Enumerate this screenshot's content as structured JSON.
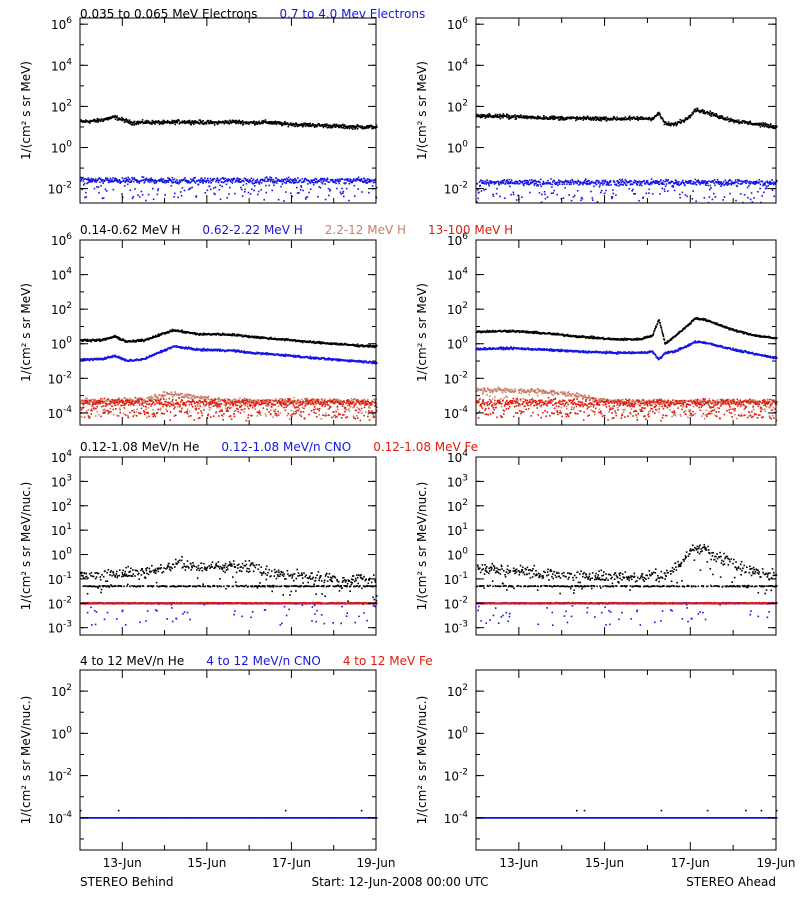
{
  "colors": {
    "black": "#000000",
    "blue": "#1515e6",
    "tan": "#c8806a",
    "red": "#e01a0c"
  },
  "footer": {
    "left": "STEREO Behind",
    "center": "Start: 12-Jun-2008 00:00 UTC",
    "right": "STEREO Ahead"
  },
  "x_ticks": [
    "13-Jun",
    "15-Jun",
    "17-Jun",
    "19-Jun"
  ],
  "rows": [
    {
      "legend": [
        {
          "text": "0.035 to 0.065 MeV Electrons",
          "color": "#000000"
        },
        {
          "text": "0.7 to 4.0 Mev Electrons",
          "color": "#1515e6"
        }
      ]
    },
    {
      "legend": [
        {
          "text": "0.14-0.62 MeV H",
          "color": "#000000"
        },
        {
          "text": "0.62-2.22 MeV H",
          "color": "#1515e6"
        },
        {
          "text": "2.2-12 MeV H",
          "color": "#c8806a"
        },
        {
          "text": "13-100 MeV H",
          "color": "#e01a0c"
        }
      ]
    },
    {
      "legend": [
        {
          "text": "0.12-1.08 MeV/n He",
          "color": "#000000"
        },
        {
          "text": "0.12-1.08 MeV/n CNO",
          "color": "#1515e6"
        },
        {
          "text": "0.12-1.08 MeV Fe",
          "color": "#e01a0c"
        }
      ]
    },
    {
      "legend": [
        {
          "text": "4 to 12 MeV/n He",
          "color": "#000000"
        },
        {
          "text": "4 to 12 MeV/n CNO",
          "color": "#1515e6"
        },
        {
          "text": "4 to 12 MeV Fe",
          "color": "#e01a0c"
        }
      ]
    }
  ],
  "chart_data": [
    {
      "type": "scatter",
      "panel": "electrons-behind",
      "row": 0,
      "col": 0,
      "ylabel": "1/(cm² s sr MeV)",
      "yscale": "log",
      "ylim": [
        0.002,
        2000000
      ],
      "y_ticks": [
        {
          "label": "10",
          "exp": "-2",
          "value": 0.01
        },
        {
          "label": "10",
          "exp": "0",
          "value": 1
        },
        {
          "label": "10",
          "exp": "2",
          "value": 100
        },
        {
          "label": "10",
          "exp": "4",
          "value": 10000
        },
        {
          "label": "10",
          "exp": "6",
          "value": 1000000
        }
      ],
      "xlim": [
        0,
        7
      ],
      "series": [
        {
          "color": "#000000",
          "x": [
            0,
            0.4,
            0.8,
            1.2,
            1.6,
            2.0,
            2.4,
            2.8,
            3.2,
            3.6,
            4.0,
            4.4,
            4.8,
            5.2,
            5.6,
            6.0,
            6.4,
            7.0
          ],
          "y": [
            18,
            20,
            30,
            16,
            17,
            16,
            18,
            17,
            16,
            18,
            16,
            17,
            14,
            13,
            12,
            11,
            10,
            10
          ],
          "noise": 0.08,
          "outliers": 0
        },
        {
          "color": "#1515e6",
          "x": [
            0,
            7
          ],
          "y": [
            0.025,
            0.025
          ],
          "noise": 0.12,
          "outliers": 0.25
        }
      ]
    },
    {
      "type": "scatter",
      "panel": "electrons-ahead",
      "row": 0,
      "col": 1,
      "ylabel": "1/(cm² s sr MeV)",
      "yscale": "log",
      "ylim": [
        0.002,
        2000000
      ],
      "y_ticks": [
        {
          "label": "10",
          "exp": "-2",
          "value": 0.01
        },
        {
          "label": "10",
          "exp": "0",
          "value": 1
        },
        {
          "label": "10",
          "exp": "2",
          "value": 100
        },
        {
          "label": "10",
          "exp": "4",
          "value": 10000
        },
        {
          "label": "10",
          "exp": "6",
          "value": 1000000
        }
      ],
      "xlim": [
        0,
        7
      ],
      "series": [
        {
          "color": "#000000",
          "x": [
            0,
            0.8,
            1.6,
            2.4,
            3.2,
            3.8,
            4.1,
            4.25,
            4.4,
            4.6,
            4.9,
            5.1,
            5.3,
            5.6,
            6.0,
            6.5,
            7.0
          ],
          "y": [
            35,
            32,
            28,
            26,
            25,
            26,
            26,
            45,
            14,
            13,
            25,
            70,
            55,
            35,
            20,
            14,
            10
          ],
          "noise": 0.08,
          "outliers": 0
        },
        {
          "color": "#1515e6",
          "x": [
            0,
            7
          ],
          "y": [
            0.02,
            0.02
          ],
          "noise": 0.12,
          "outliers": 0.25
        }
      ]
    },
    {
      "type": "scatter",
      "panel": "protons-behind",
      "row": 1,
      "col": 0,
      "ylabel": "1/(cm² s sr MeV)",
      "yscale": "log",
      "ylim": [
        2e-05,
        1000000
      ],
      "y_ticks": [
        {
          "label": "10",
          "exp": "-4",
          "value": 0.0001
        },
        {
          "label": "10",
          "exp": "-2",
          "value": 0.01
        },
        {
          "label": "10",
          "exp": "0",
          "value": 1
        },
        {
          "label": "10",
          "exp": "2",
          "value": 100
        },
        {
          "label": "10",
          "exp": "4",
          "value": 10000
        },
        {
          "label": "10",
          "exp": "6",
          "value": 1000000
        }
      ],
      "xlim": [
        0,
        7
      ],
      "series": [
        {
          "color": "#000000",
          "x": [
            0,
            0.5,
            0.8,
            1.1,
            1.5,
            1.9,
            2.2,
            2.4,
            2.8,
            3.2,
            3.6,
            4.0,
            4.5,
            5.0,
            5.5,
            6.0,
            6.5,
            7.0
          ],
          "y": [
            1.6,
            1.6,
            2.6,
            1.3,
            1.6,
            3.5,
            6,
            5,
            3.5,
            3.6,
            3.3,
            2.6,
            2,
            1.6,
            1.2,
            1.0,
            0.8,
            0.7
          ],
          "noise": 0.05,
          "outliers": 0
        },
        {
          "color": "#1515e6",
          "x": [
            0,
            0.5,
            0.8,
            1.1,
            1.5,
            1.9,
            2.2,
            2.4,
            2.8,
            3.2,
            3.6,
            4.0,
            4.5,
            5.0,
            5.5,
            6.0,
            6.5,
            7.0
          ],
          "y": [
            0.12,
            0.13,
            0.2,
            0.1,
            0.13,
            0.35,
            0.7,
            0.6,
            0.45,
            0.43,
            0.4,
            0.3,
            0.25,
            0.2,
            0.15,
            0.12,
            0.1,
            0.08
          ],
          "noise": 0.05,
          "outliers": 0
        },
        {
          "color": "#c8806a",
          "x": [
            0,
            1.5,
            2.0,
            2.4,
            2.8,
            3.5,
            7.0
          ],
          "y": [
            0.00045,
            0.00055,
            0.0012,
            0.0011,
            0.0007,
            0.0005,
            0.00045
          ],
          "noise": 0.15,
          "outliers": 0.3
        },
        {
          "color": "#e01a0c",
          "x": [
            0,
            7
          ],
          "y": [
            0.0004,
            0.0004
          ],
          "noise": 0.18,
          "outliers": 0.4
        }
      ]
    },
    {
      "type": "scatter",
      "panel": "protons-ahead",
      "row": 1,
      "col": 1,
      "ylabel": "1/(cm² s sr MeV)",
      "yscale": "log",
      "ylim": [
        2e-05,
        1000000
      ],
      "y_ticks": [
        {
          "label": "10",
          "exp": "-4",
          "value": 0.0001
        },
        {
          "label": "10",
          "exp": "-2",
          "value": 0.01
        },
        {
          "label": "10",
          "exp": "0",
          "value": 1
        },
        {
          "label": "10",
          "exp": "2",
          "value": 100
        },
        {
          "label": "10",
          "exp": "4",
          "value": 10000
        },
        {
          "label": "10",
          "exp": "6",
          "value": 1000000
        }
      ],
      "xlim": [
        0,
        7
      ],
      "series": [
        {
          "color": "#000000",
          "x": [
            0,
            0.8,
            1.6,
            2.4,
            3.2,
            3.8,
            4.1,
            4.25,
            4.4,
            4.6,
            4.9,
            5.1,
            5.3,
            5.6,
            6.0,
            6.5,
            7.0
          ],
          "y": [
            5,
            5.5,
            4,
            2.6,
            1.8,
            1.8,
            3,
            25,
            1,
            2.5,
            10,
            30,
            25,
            14,
            6,
            3,
            2
          ],
          "noise": 0.05,
          "outliers": 0
        },
        {
          "color": "#1515e6",
          "x": [
            0,
            0.8,
            1.6,
            2.4,
            3.2,
            3.8,
            4.1,
            4.25,
            4.4,
            4.6,
            4.9,
            5.1,
            5.3,
            5.6,
            6.0,
            6.5,
            7.0
          ],
          "y": [
            0.5,
            0.55,
            0.45,
            0.35,
            0.3,
            0.3,
            0.35,
            0.12,
            0.3,
            0.35,
            0.7,
            1.3,
            1.2,
            0.8,
            0.45,
            0.25,
            0.15
          ],
          "noise": 0.05,
          "outliers": 0
        },
        {
          "color": "#c8806a",
          "x": [
            0,
            0.8,
            1.5,
            2.2,
            2.8,
            3.2,
            7.0
          ],
          "y": [
            0.0022,
            0.002,
            0.0018,
            0.0012,
            0.0006,
            0.00045,
            0.00045
          ],
          "noise": 0.12,
          "outliers": 0.3
        },
        {
          "color": "#e01a0c",
          "x": [
            0,
            7
          ],
          "y": [
            0.0004,
            0.0004
          ],
          "noise": 0.18,
          "outliers": 0.4
        }
      ]
    },
    {
      "type": "scatter",
      "panel": "heavy-low-behind",
      "row": 2,
      "col": 0,
      "ylabel": "1/(cm² s sr MeV/nuc.)",
      "yscale": "log",
      "ylim": [
        0.0005,
        10000
      ],
      "y_ticks": [
        {
          "label": "10",
          "exp": "-3",
          "value": 0.001
        },
        {
          "label": "10",
          "exp": "-2",
          "value": 0.01
        },
        {
          "label": "10",
          "exp": "-1",
          "value": 0.1
        },
        {
          "label": "10",
          "exp": "0",
          "value": 1
        },
        {
          "label": "10",
          "exp": "1",
          "value": 10
        },
        {
          "label": "10",
          "exp": "2",
          "value": 100
        },
        {
          "label": "10",
          "exp": "3",
          "value": 1000
        },
        {
          "label": "10",
          "exp": "4",
          "value": 10000
        }
      ],
      "xlim": [
        0,
        7
      ],
      "series": [
        {
          "color": "#000000",
          "x": [
            0,
            0.5,
            1.0,
            1.5,
            2.0,
            2.4,
            2.8,
            3.2,
            3.6,
            4.0,
            4.4,
            4.8,
            5.2,
            6.0,
            7.0
          ],
          "y": [
            0.15,
            0.15,
            0.17,
            0.18,
            0.3,
            0.45,
            0.3,
            0.3,
            0.35,
            0.3,
            0.2,
            0.15,
            0.12,
            0.1,
            0.1
          ],
          "noise": 0.2,
          "outliers": 0.15,
          "baseline": 0.05
        },
        {
          "color": "#1515e6",
          "x": [
            0,
            7
          ],
          "y": [
            0.01,
            0.01
          ],
          "noise": 0.02,
          "outliers": 0.1
        },
        {
          "color": "#e01a0c",
          "x": [
            0,
            7
          ],
          "y": [
            0.01,
            0.01
          ],
          "noise": 0.02,
          "outliers": 0
        }
      ]
    },
    {
      "type": "scatter",
      "panel": "heavy-low-ahead",
      "row": 2,
      "col": 1,
      "ylabel": "1/(cm² s sr MeV/nuc.)",
      "yscale": "log",
      "ylim": [
        0.0005,
        10000
      ],
      "y_ticks": [
        {
          "label": "10",
          "exp": "-3",
          "value": 0.001
        },
        {
          "label": "10",
          "exp": "-2",
          "value": 0.01
        },
        {
          "label": "10",
          "exp": "-1",
          "value": 0.1
        },
        {
          "label": "10",
          "exp": "0",
          "value": 1
        },
        {
          "label": "10",
          "exp": "1",
          "value": 10
        },
        {
          "label": "10",
          "exp": "2",
          "value": 100
        },
        {
          "label": "10",
          "exp": "3",
          "value": 1000
        },
        {
          "label": "10",
          "exp": "4",
          "value": 10000
        }
      ],
      "xlim": [
        0,
        7
      ],
      "series": [
        {
          "color": "#000000",
          "x": [
            0,
            0.5,
            1.0,
            2.0,
            3.0,
            3.8,
            4.4,
            4.8,
            5.1,
            5.3,
            5.6,
            6.0,
            6.5,
            7.0
          ],
          "y": [
            0.3,
            0.25,
            0.2,
            0.15,
            0.12,
            0.12,
            0.15,
            0.5,
            2.0,
            1.8,
            0.8,
            0.4,
            0.2,
            0.12
          ],
          "noise": 0.2,
          "outliers": 0.15,
          "baseline": 0.05
        },
        {
          "color": "#1515e6",
          "x": [
            0,
            7
          ],
          "y": [
            0.01,
            0.01
          ],
          "noise": 0.02,
          "outliers": 0.1
        },
        {
          "color": "#e01a0c",
          "x": [
            0,
            7
          ],
          "y": [
            0.01,
            0.01
          ],
          "noise": 0.02,
          "outliers": 0
        }
      ]
    },
    {
      "type": "scatter",
      "panel": "heavy-high-behind",
      "row": 3,
      "col": 0,
      "ylabel": "1/(cm² s sr MeV/nuc.)",
      "yscale": "log",
      "ylim": [
        3e-06,
        1000
      ],
      "y_ticks": [
        {
          "label": "10",
          "exp": "-4",
          "value": 0.0001
        },
        {
          "label": "10",
          "exp": "-2",
          "value": 0.01
        },
        {
          "label": "10",
          "exp": "0",
          "value": 1
        },
        {
          "label": "10",
          "exp": "2",
          "value": 100
        }
      ],
      "xlim": [
        0,
        7
      ],
      "series": [
        {
          "color": "#000000",
          "x": [
            0,
            7
          ],
          "y": [
            0.0001,
            0.0001
          ],
          "noise": 0.0,
          "outliers": 0,
          "sparse": 0.06
        },
        {
          "color": "#1515e6",
          "x": [
            0,
            7
          ],
          "y": [
            0.0001,
            0.0001
          ],
          "noise": 0.0,
          "outliers": 0
        }
      ]
    },
    {
      "type": "scatter",
      "panel": "heavy-high-ahead",
      "row": 3,
      "col": 1,
      "ylabel": "1/(cm² s sr MeV/nuc.)",
      "yscale": "log",
      "ylim": [
        3e-06,
        1000
      ],
      "y_ticks": [
        {
          "label": "10",
          "exp": "-4",
          "value": 0.0001
        },
        {
          "label": "10",
          "exp": "-2",
          "value": 0.01
        },
        {
          "label": "10",
          "exp": "0",
          "value": 1
        },
        {
          "label": "10",
          "exp": "2",
          "value": 100
        }
      ],
      "xlim": [
        0,
        7
      ],
      "series": [
        {
          "color": "#000000",
          "x": [
            0,
            7
          ],
          "y": [
            0.0001,
            0.0001
          ],
          "noise": 0.0,
          "outliers": 0,
          "sparse": 0.06
        },
        {
          "color": "#1515e6",
          "x": [
            0,
            7
          ],
          "y": [
            0.0001,
            0.0001
          ],
          "noise": 0.0,
          "outliers": 0
        }
      ]
    }
  ]
}
